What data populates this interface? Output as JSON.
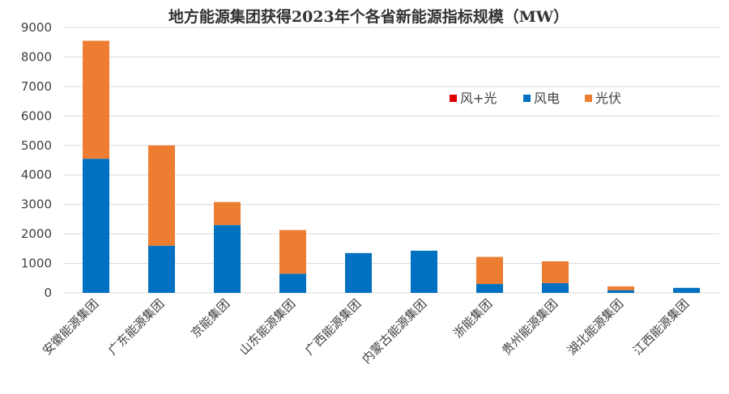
{
  "chart_data": {
    "type": "bar",
    "stacked": true,
    "title": "地方能源集团获得2023年个各省新能源指标规模（MW）",
    "categories": [
      "安徽能源集团",
      "广东能源集团",
      "京能集团",
      "山东能源集团",
      "广西能源集团",
      "内蒙古能源集团",
      "浙能集团",
      "贵州能源集团",
      "湖北能源集团",
      "江西能源集团"
    ],
    "series": [
      {
        "name": "风+光",
        "color": "#e00000",
        "values": [
          0,
          0,
          0,
          0,
          0,
          0,
          0,
          0,
          0,
          0
        ]
      },
      {
        "name": "风电",
        "color": "#0070c0",
        "values": [
          4550,
          1600,
          2300,
          650,
          1350,
          1430,
          300,
          330,
          90,
          170
        ]
      },
      {
        "name": "光伏",
        "color": "#ed7d31",
        "values": [
          4000,
          3400,
          780,
          1480,
          0,
          0,
          920,
          740,
          130,
          0
        ]
      }
    ],
    "ylim": [
      0,
      9000
    ],
    "yticks": [
      "0",
      "1000",
      "2000",
      "3000",
      "4000",
      "5000",
      "6000",
      "7000",
      "8000",
      "9000"
    ],
    "grid": true,
    "legend_position": "upper-right-inside"
  }
}
